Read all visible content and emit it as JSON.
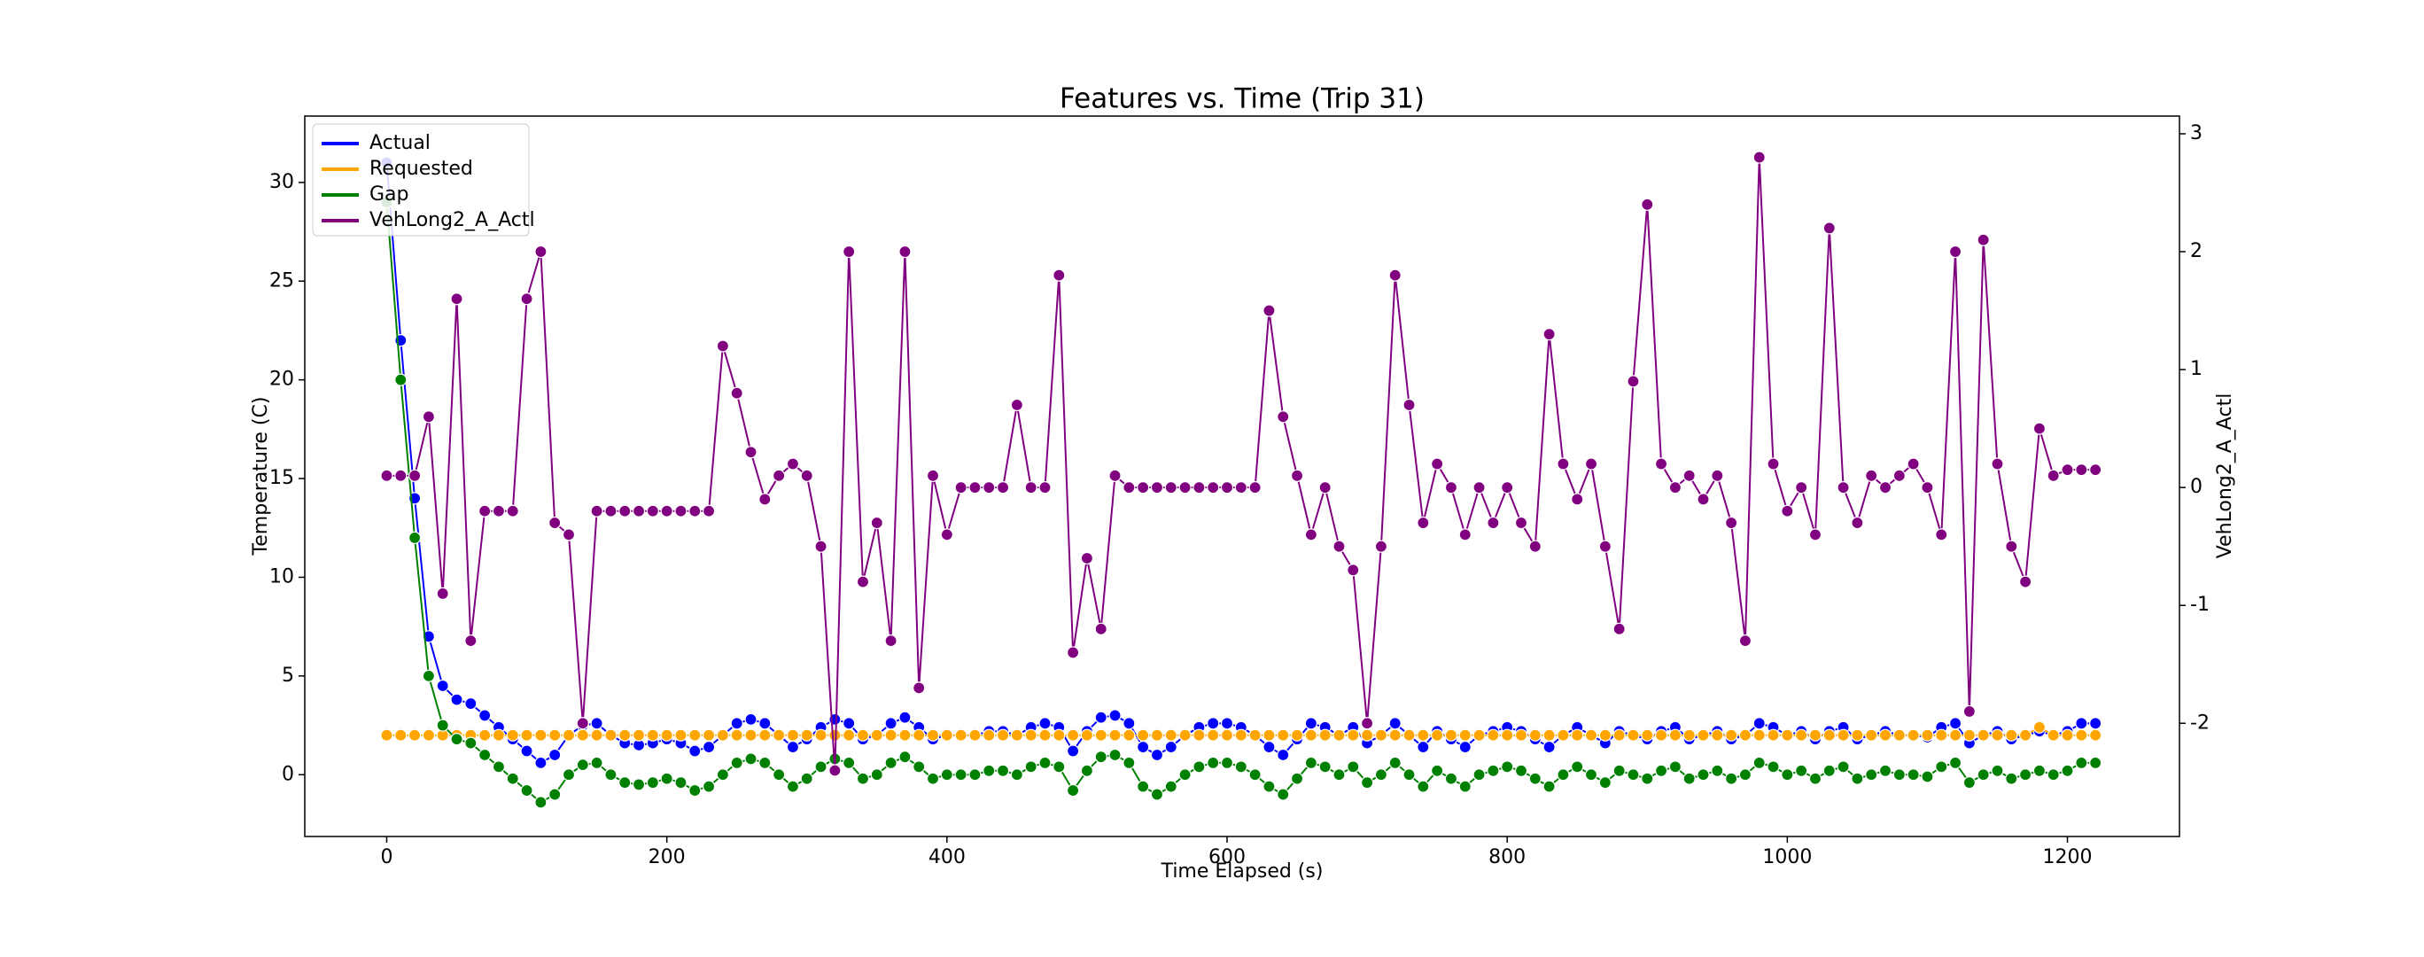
{
  "chart_data": {
    "type": "line",
    "title": "Features vs. Time (Trip 31)",
    "xlabel": "Time Elapsed (s)",
    "ylabel": "Temperature (C)",
    "y2label": "VehLong2_A_Actl",
    "legend": "upper left",
    "x": [
      0,
      10,
      20,
      30,
      40,
      50,
      60,
      70,
      80,
      90,
      100,
      110,
      120,
      130,
      140,
      150,
      160,
      170,
      180,
      190,
      200,
      210,
      220,
      230,
      240,
      250,
      260,
      270,
      280,
      290,
      300,
      310,
      320,
      330,
      340,
      350,
      360,
      370,
      380,
      390,
      400,
      410,
      420,
      430,
      440,
      450,
      460,
      470,
      480,
      490,
      500,
      510,
      520,
      530,
      540,
      550,
      560,
      570,
      580,
      590,
      600,
      610,
      620,
      630,
      640,
      650,
      660,
      670,
      680,
      690,
      700,
      710,
      720,
      730,
      740,
      750,
      760,
      770,
      780,
      790,
      800,
      810,
      820,
      830,
      840,
      850,
      860,
      870,
      880,
      890,
      900,
      910,
      920,
      930,
      940,
      950,
      960,
      970,
      980,
      990,
      1000,
      1010,
      1020,
      1030,
      1040,
      1050,
      1060,
      1070,
      1080,
      1090,
      1100,
      1110,
      1120,
      1130,
      1140,
      1150,
      1160,
      1170,
      1180,
      1190,
      1200,
      1210,
      1220
    ],
    "series": [
      {
        "name": "Actual",
        "color": "#0000ff",
        "values": [
          31,
          22,
          14,
          7,
          4.5,
          3.8,
          3.6,
          3.0,
          2.4,
          1.8,
          1.2,
          0.6,
          1.0,
          2.0,
          2.5,
          2.6,
          2.0,
          1.6,
          1.5,
          1.6,
          1.8,
          1.6,
          1.2,
          1.4,
          2.0,
          2.6,
          2.8,
          2.6,
          2.0,
          1.4,
          1.8,
          2.4,
          2.8,
          2.6,
          1.8,
          2.0,
          2.6,
          2.9,
          2.4,
          1.8,
          2.0,
          2.0,
          2.0,
          2.2,
          2.2,
          2.0,
          2.4,
          2.6,
          2.4,
          1.2,
          2.2,
          2.9,
          3.0,
          2.6,
          1.4,
          1.0,
          1.4,
          2.0,
          2.4,
          2.6,
          2.6,
          2.4,
          2.0,
          1.4,
          1.0,
          1.8,
          2.6,
          2.4,
          2.0,
          2.4,
          1.6,
          2.0,
          2.6,
          2.0,
          1.4,
          2.2,
          1.8,
          1.4,
          2.0,
          2.2,
          2.4,
          2.2,
          1.8,
          1.4,
          2.0,
          2.4,
          2.0,
          1.6,
          2.2,
          2.0,
          1.8,
          2.2,
          2.4,
          1.8,
          2.0,
          2.2,
          1.8,
          2.0,
          2.6,
          2.4,
          2.0,
          2.2,
          1.8,
          2.2,
          2.4,
          1.8,
          2.0,
          2.2,
          2.0,
          2.0,
          1.9,
          2.4,
          2.6,
          1.6,
          2.0,
          2.2,
          1.8,
          2.0,
          2.2,
          2.0,
          2.2,
          2.6,
          2.6
        ]
      },
      {
        "name": "Requested",
        "color": "#ffa500",
        "values": [
          2,
          2,
          2,
          2,
          2,
          2,
          2,
          2,
          2,
          2,
          2,
          2,
          2,
          2,
          2,
          2,
          2,
          2,
          2,
          2,
          2,
          2,
          2,
          2,
          2,
          2,
          2,
          2,
          2,
          2,
          2,
          2,
          2,
          2,
          2,
          2,
          2,
          2,
          2,
          2,
          2,
          2,
          2,
          2,
          2,
          2,
          2,
          2,
          2,
          2,
          2,
          2,
          2,
          2,
          2,
          2,
          2,
          2,
          2,
          2,
          2,
          2,
          2,
          2,
          2,
          2,
          2,
          2,
          2,
          2,
          2,
          2,
          2,
          2,
          2,
          2,
          2,
          2,
          2,
          2,
          2,
          2,
          2,
          2,
          2,
          2,
          2,
          2,
          2,
          2,
          2,
          2,
          2,
          2,
          2,
          2,
          2,
          2,
          2,
          2,
          2,
          2,
          2,
          2,
          2,
          2,
          2,
          2,
          2,
          2,
          2,
          2,
          2,
          2,
          2,
          2,
          2,
          2,
          2.4,
          2,
          2,
          2,
          2
        ]
      },
      {
        "name": "Gap",
        "color": "#008000",
        "values": [
          29,
          20,
          12,
          5,
          2.5,
          1.8,
          1.6,
          1.0,
          0.4,
          -0.2,
          -0.8,
          -1.4,
          -1.0,
          0,
          0.5,
          0.6,
          0,
          -0.4,
          -0.5,
          -0.4,
          -0.2,
          -0.4,
          -0.8,
          -0.6,
          0,
          0.6,
          0.8,
          0.6,
          0,
          -0.6,
          -0.2,
          0.4,
          0.8,
          0.6,
          -0.2,
          0,
          0.6,
          0.9,
          0.4,
          -0.2,
          0,
          0,
          0,
          0.2,
          0.2,
          0,
          0.4,
          0.6,
          0.4,
          -0.8,
          0.2,
          0.9,
          1.0,
          0.6,
          -0.6,
          -1.0,
          -0.6,
          0,
          0.4,
          0.6,
          0.6,
          0.4,
          0,
          -0.6,
          -1.0,
          -0.2,
          0.6,
          0.4,
          0,
          0.4,
          -0.4,
          0,
          0.6,
          0,
          -0.6,
          0.2,
          -0.2,
          -0.6,
          0,
          0.2,
          0.4,
          0.2,
          -0.2,
          -0.6,
          0,
          0.4,
          0,
          -0.4,
          0.2,
          0,
          -0.2,
          0.2,
          0.4,
          -0.2,
          0,
          0.2,
          -0.2,
          0,
          0.6,
          0.4,
          0,
          0.2,
          -0.2,
          0.2,
          0.4,
          -0.2,
          0,
          0.2,
          0,
          0,
          -0.1,
          0.4,
          0.6,
          -0.4,
          0,
          0.2,
          -0.2,
          0,
          0.2,
          0,
          0.2,
          0.6,
          0.6
        ]
      },
      {
        "name": "VehLong2_A_Actl",
        "color": "#800080",
        "axis": "y2",
        "values": [
          0.1,
          0.1,
          0.1,
          0.6,
          -0.9,
          1.6,
          -1.3,
          -0.2,
          -0.2,
          -0.2,
          1.6,
          2.0,
          -0.3,
          -0.4,
          -2.0,
          -0.2,
          -0.2,
          -0.2,
          -0.2,
          -0.2,
          -0.2,
          -0.2,
          -0.2,
          -0.2,
          1.2,
          0.8,
          0.3,
          -0.1,
          0.1,
          0.2,
          0.1,
          -0.5,
          -2.4,
          2.0,
          -0.8,
          -0.3,
          -1.3,
          2.0,
          -1.7,
          0.1,
          -0.4,
          0,
          0,
          0,
          0,
          0.7,
          0,
          0,
          1.8,
          -1.4,
          -0.6,
          -1.2,
          0.1,
          0,
          0,
          0,
          0,
          0,
          0,
          0,
          0,
          0,
          0,
          1.5,
          0.6,
          0.1,
          -0.4,
          0,
          -0.5,
          -0.7,
          -2.0,
          -0.5,
          1.8,
          0.7,
          -0.3,
          0.2,
          0,
          -0.4,
          0,
          -0.3,
          0,
          -0.3,
          -0.5,
          1.3,
          0.2,
          -0.1,
          0.2,
          -0.5,
          -1.2,
          0.9,
          2.4,
          0.2,
          0,
          0.1,
          -0.1,
          0.1,
          -0.3,
          -1.3,
          2.8,
          0.2,
          -0.2,
          0,
          -0.4,
          2.2,
          0,
          -0.3,
          0.1,
          0,
          0.1,
          0.2,
          0,
          -0.4,
          2.0,
          -1.9,
          2.1,
          0.2,
          -0.5,
          -0.8,
          0.5,
          0.1,
          0.15,
          0.15,
          0.15
        ]
      }
    ],
    "xlim": [
      -58.5,
      1280
    ],
    "xticks": [
      0,
      200,
      400,
      600,
      800,
      1000,
      1200
    ],
    "ylim": [
      -3.13,
      33.36
    ],
    "yticks": [
      0,
      5,
      10,
      15,
      20,
      25,
      30
    ],
    "y2lim": [
      -2.96,
      3.15
    ],
    "y2ticks": [
      -2,
      -1,
      0,
      1,
      2,
      3
    ]
  }
}
